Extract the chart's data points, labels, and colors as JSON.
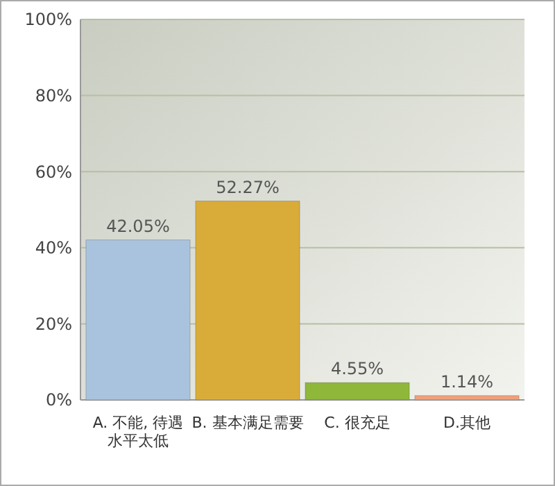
{
  "chart_data": {
    "type": "bar",
    "categories": [
      "A. 不能, 待遇水平太低",
      "B. 基本满足需要",
      "C. 很充足",
      "D.其他"
    ],
    "values": [
      42.05,
      52.27,
      4.55,
      1.14
    ],
    "colors": [
      "#a9c3de",
      "#d9ac3a",
      "#8fb73a",
      "#f0a17a"
    ],
    "value_labels": [
      "42.05%",
      "52.27%",
      "4.55%",
      "1.14%"
    ],
    "ylim": [
      0,
      100
    ],
    "yticks": [
      {
        "value": 0,
        "label": "0%"
      },
      {
        "value": 20,
        "label": "20%"
      },
      {
        "value": 40,
        "label": "40%"
      },
      {
        "value": 60,
        "label": "60%"
      },
      {
        "value": 80,
        "label": "80%"
      },
      {
        "value": 100,
        "label": "100%"
      }
    ],
    "grid": "y"
  }
}
